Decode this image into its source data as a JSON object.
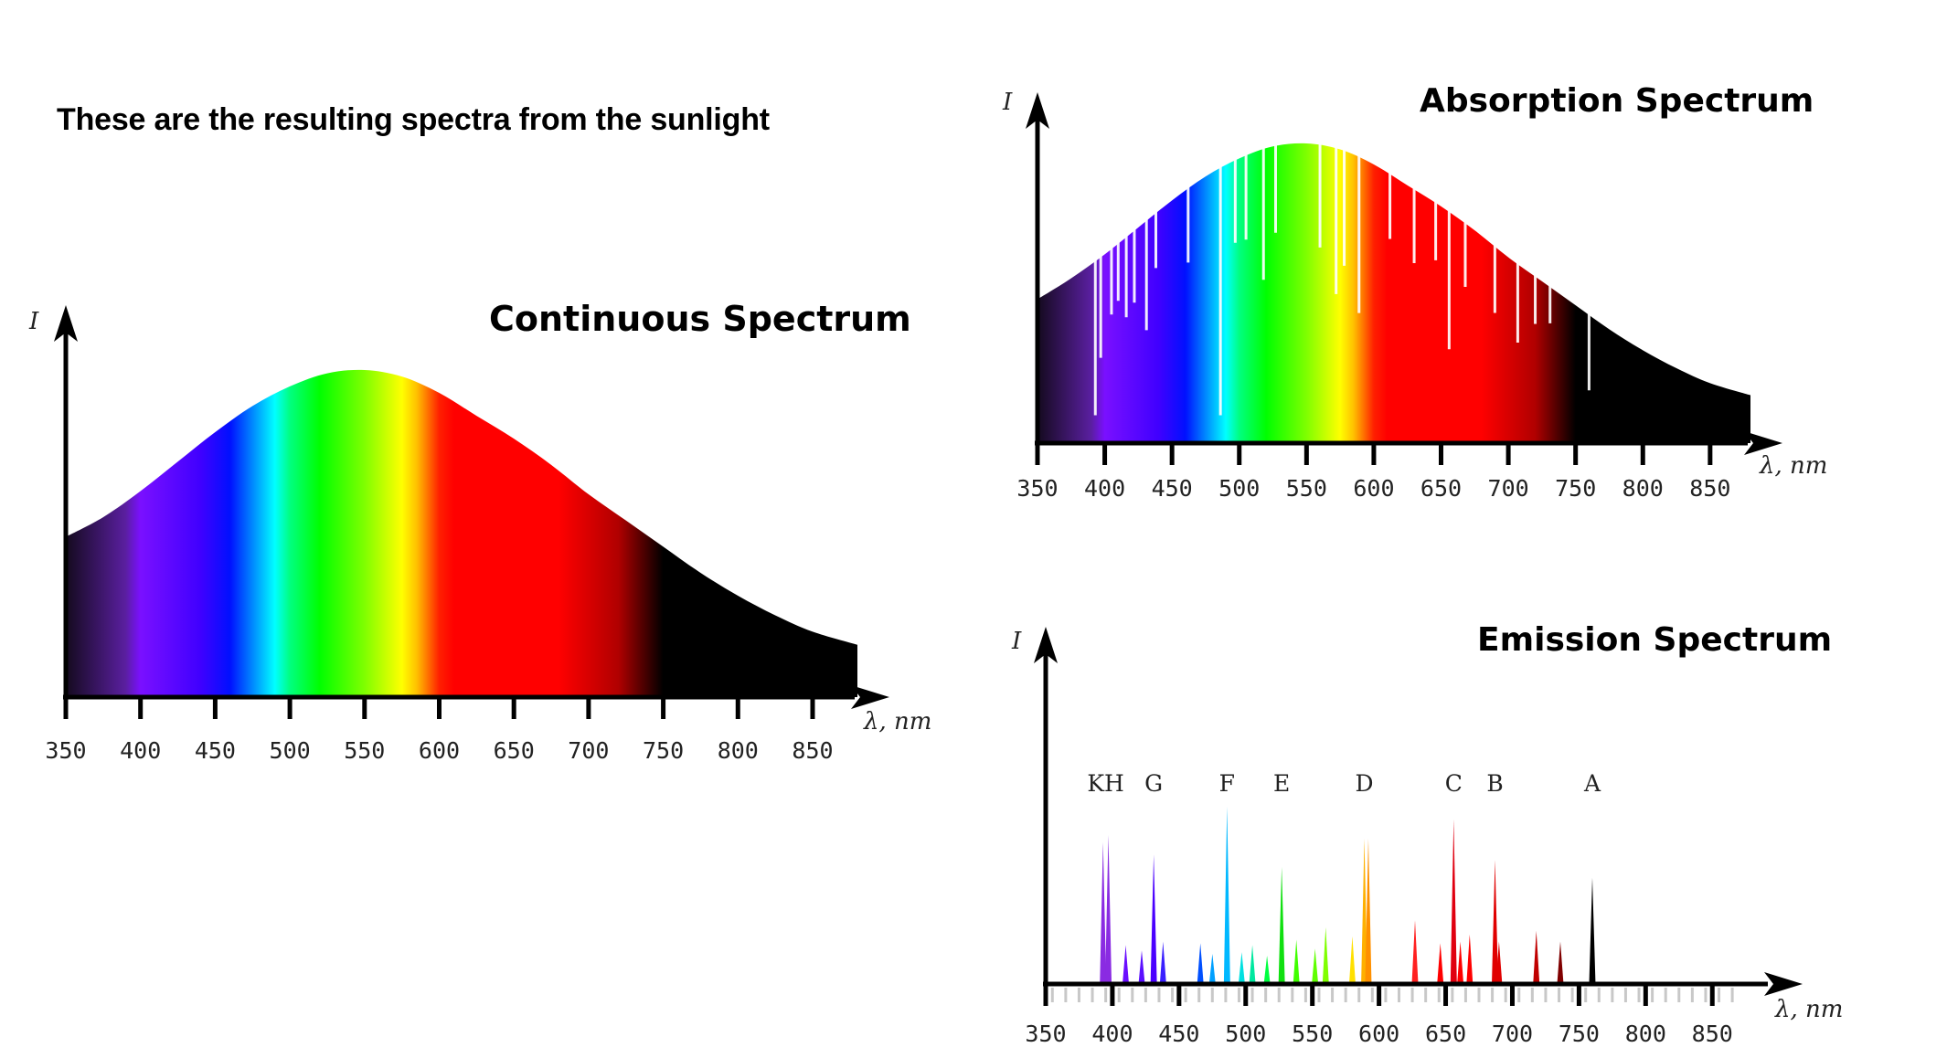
{
  "heading": "These are the resulting spectra from the sunlight",
  "chart_data": [
    {
      "type": "area",
      "title": "Continuous Spectrum",
      "ylabel": "I",
      "xlabel": "λ, nm",
      "xlim": [
        350,
        880
      ],
      "ylim": [
        0,
        1
      ],
      "x_ticks": [
        350,
        400,
        450,
        500,
        550,
        600,
        650,
        700,
        750,
        800,
        850
      ],
      "x": [
        350,
        375,
        400,
        425,
        450,
        475,
        500,
        525,
        550,
        575,
        600,
        625,
        650,
        675,
        700,
        725,
        750,
        775,
        800,
        825,
        850,
        880
      ],
      "y": [
        0.49,
        0.55,
        0.63,
        0.72,
        0.81,
        0.89,
        0.95,
        0.99,
        1.0,
        0.98,
        0.93,
        0.86,
        0.79,
        0.71,
        0.62,
        0.54,
        0.46,
        0.38,
        0.31,
        0.25,
        0.2,
        0.16
      ],
      "spectrum_colors": [
        {
          "nm": 350,
          "color": "#140a1e"
        },
        {
          "nm": 390,
          "color": "#5a1fa0"
        },
        {
          "nm": 400,
          "color": "#7a10ff"
        },
        {
          "nm": 440,
          "color": "#4000ff"
        },
        {
          "nm": 460,
          "color": "#0010ff"
        },
        {
          "nm": 480,
          "color": "#00b0ff"
        },
        {
          "nm": 490,
          "color": "#00ffff"
        },
        {
          "nm": 500,
          "color": "#00ff80"
        },
        {
          "nm": 520,
          "color": "#00ff00"
        },
        {
          "nm": 550,
          "color": "#7fff00"
        },
        {
          "nm": 575,
          "color": "#ffff00"
        },
        {
          "nm": 585,
          "color": "#ffc000"
        },
        {
          "nm": 600,
          "color": "#ff2000"
        },
        {
          "nm": 610,
          "color": "#ff0000"
        },
        {
          "nm": 680,
          "color": "#ff0000"
        },
        {
          "nm": 720,
          "color": "#b00000"
        },
        {
          "nm": 750,
          "color": "#000000"
        },
        {
          "nm": 880,
          "color": "#000000"
        }
      ]
    },
    {
      "type": "area",
      "title": "Absorption Spectrum",
      "ylabel": "I",
      "xlabel": "λ, nm",
      "xlim": [
        350,
        880
      ],
      "ylim": [
        0,
        1
      ],
      "x_ticks": [
        350,
        400,
        450,
        500,
        550,
        600,
        650,
        700,
        750,
        800,
        850
      ],
      "x": [
        350,
        375,
        400,
        425,
        450,
        475,
        500,
        525,
        550,
        575,
        600,
        625,
        650,
        675,
        700,
        725,
        750,
        775,
        800,
        825,
        850,
        880
      ],
      "y": [
        0.48,
        0.55,
        0.63,
        0.72,
        0.81,
        0.89,
        0.95,
        0.99,
        1.0,
        0.98,
        0.93,
        0.86,
        0.79,
        0.71,
        0.62,
        0.54,
        0.46,
        0.38,
        0.31,
        0.25,
        0.2,
        0.16
      ],
      "absorption_lines_nm": [
        393,
        397,
        405,
        410,
        416,
        422,
        431,
        438,
        462,
        486,
        497,
        505,
        518,
        527,
        560,
        572,
        578,
        589,
        612,
        630,
        646,
        656,
        668,
        690,
        707,
        720,
        731,
        760
      ],
      "spectrum_colors": [
        {
          "nm": 350,
          "color": "#140a1e"
        },
        {
          "nm": 390,
          "color": "#5a1fa0"
        },
        {
          "nm": 400,
          "color": "#7a10ff"
        },
        {
          "nm": 440,
          "color": "#4000ff"
        },
        {
          "nm": 460,
          "color": "#0010ff"
        },
        {
          "nm": 480,
          "color": "#00b0ff"
        },
        {
          "nm": 490,
          "color": "#00ffff"
        },
        {
          "nm": 500,
          "color": "#00ff80"
        },
        {
          "nm": 520,
          "color": "#00ff00"
        },
        {
          "nm": 550,
          "color": "#7fff00"
        },
        {
          "nm": 575,
          "color": "#ffff00"
        },
        {
          "nm": 585,
          "color": "#ffc000"
        },
        {
          "nm": 600,
          "color": "#ff2000"
        },
        {
          "nm": 610,
          "color": "#ff0000"
        },
        {
          "nm": 680,
          "color": "#ff0000"
        },
        {
          "nm": 720,
          "color": "#b00000"
        },
        {
          "nm": 750,
          "color": "#000000"
        },
        {
          "nm": 880,
          "color": "#000000"
        }
      ]
    },
    {
      "type": "bar",
      "title": "Emission Spectrum",
      "ylabel": "I",
      "xlabel": "λ, nm",
      "xlim": [
        350,
        880
      ],
      "ylim": [
        0,
        1
      ],
      "x_ticks": [
        350,
        400,
        450,
        500,
        550,
        600,
        650,
        700,
        750,
        800,
        850
      ],
      "line_labels": [
        {
          "text": "KH",
          "nm": 395
        },
        {
          "text": "G",
          "nm": 431
        },
        {
          "text": "F",
          "nm": 486
        },
        {
          "text": "E",
          "nm": 527
        },
        {
          "text": "D",
          "nm": 589
        },
        {
          "text": "C",
          "nm": 656
        },
        {
          "text": "B",
          "nm": 687
        },
        {
          "text": "A",
          "nm": 760
        }
      ],
      "lines": [
        {
          "nm": 393,
          "value": 0.8,
          "color": "#8a2be2"
        },
        {
          "nm": 397,
          "value": 0.84,
          "color": "#8a2be2"
        },
        {
          "nm": 410,
          "value": 0.22,
          "color": "#6a0dff"
        },
        {
          "nm": 422,
          "value": 0.19,
          "color": "#5a10ff"
        },
        {
          "nm": 431,
          "value": 0.73,
          "color": "#4a00ff"
        },
        {
          "nm": 438,
          "value": 0.24,
          "color": "#3a20ff"
        },
        {
          "nm": 466,
          "value": 0.23,
          "color": "#0050ff"
        },
        {
          "nm": 475,
          "value": 0.17,
          "color": "#00a0ff"
        },
        {
          "nm": 486,
          "value": 1.0,
          "color": "#00b8ff"
        },
        {
          "nm": 497,
          "value": 0.18,
          "color": "#00e0e0"
        },
        {
          "nm": 505,
          "value": 0.22,
          "color": "#00e8a0"
        },
        {
          "nm": 516,
          "value": 0.16,
          "color": "#00ff40"
        },
        {
          "nm": 527,
          "value": 0.66,
          "color": "#10e010"
        },
        {
          "nm": 538,
          "value": 0.25,
          "color": "#40ff00"
        },
        {
          "nm": 552,
          "value": 0.2,
          "color": "#60ff00"
        },
        {
          "nm": 560,
          "value": 0.32,
          "color": "#80ff00"
        },
        {
          "nm": 580,
          "value": 0.27,
          "color": "#ffe000"
        },
        {
          "nm": 589,
          "value": 0.82,
          "color": "#ffb000"
        },
        {
          "nm": 592,
          "value": 0.82,
          "color": "#ff9000"
        },
        {
          "nm": 627,
          "value": 0.36,
          "color": "#ff2020"
        },
        {
          "nm": 646,
          "value": 0.23,
          "color": "#ff0000"
        },
        {
          "nm": 656,
          "value": 0.93,
          "color": "#e00010"
        },
        {
          "nm": 661,
          "value": 0.24,
          "color": "#ff0000"
        },
        {
          "nm": 668,
          "value": 0.28,
          "color": "#ff0000"
        },
        {
          "nm": 687,
          "value": 0.7,
          "color": "#e00000"
        },
        {
          "nm": 690,
          "value": 0.24,
          "color": "#e00000"
        },
        {
          "nm": 718,
          "value": 0.3,
          "color": "#c00000"
        },
        {
          "nm": 736,
          "value": 0.24,
          "color": "#800000"
        },
        {
          "nm": 760,
          "value": 0.6,
          "color": "#000000"
        }
      ]
    }
  ]
}
